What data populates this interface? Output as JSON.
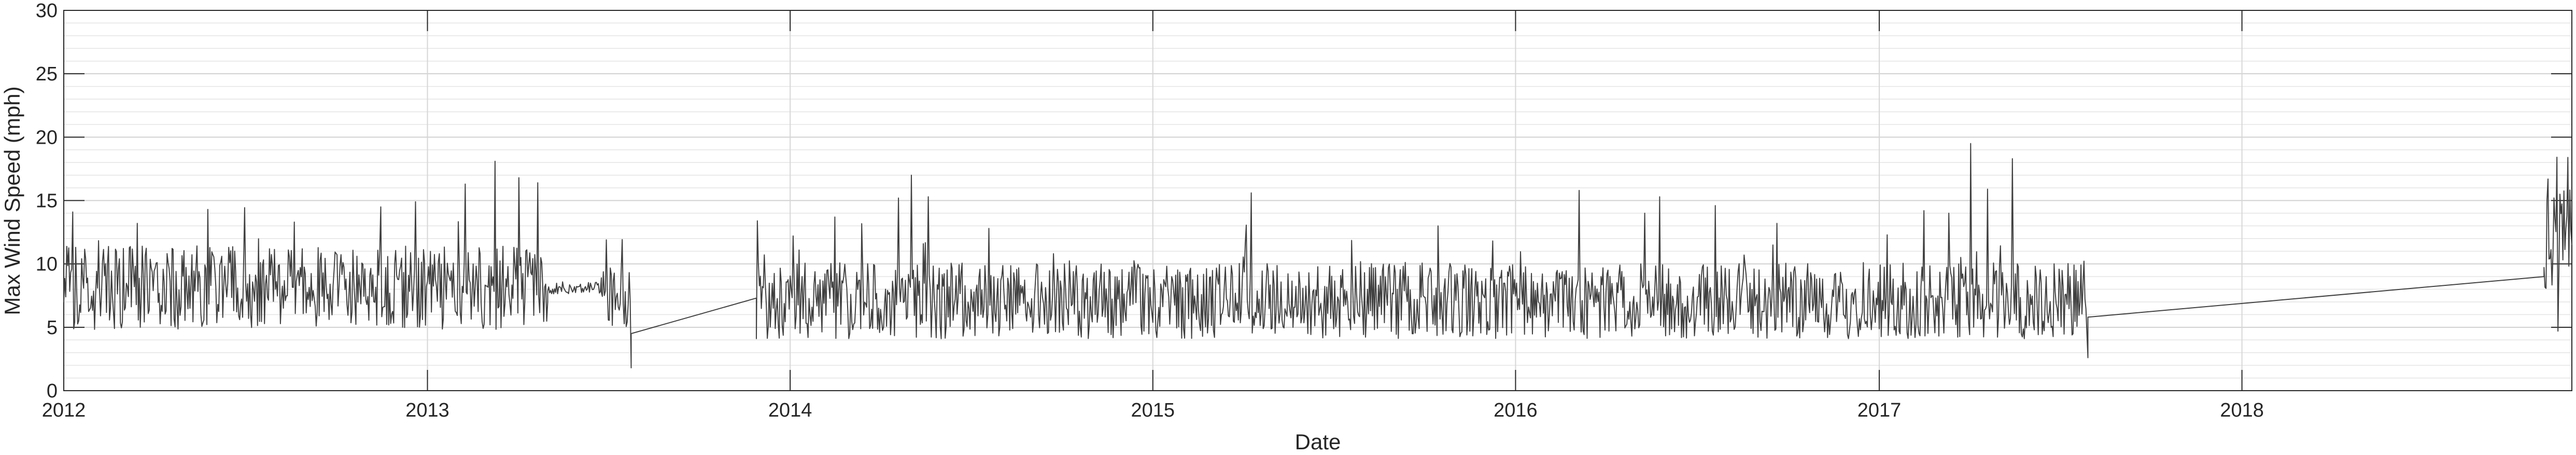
{
  "chart_data": {
    "type": "line",
    "title": "",
    "xlabel": "Date",
    "ylabel": "Max Wind Speed (mph)",
    "ylim": [
      0,
      30
    ],
    "xlim": [
      "2012-01-01",
      "2018-11-29"
    ],
    "grid": "major and minor",
    "line_color": "#404040",
    "x_ticks": [
      "2012",
      "2013",
      "2014",
      "2015",
      "2016",
      "2017",
      "2018"
    ],
    "y_ticks": [
      "0",
      "5",
      "10",
      "15",
      "20",
      "25",
      "30"
    ],
    "series": [
      {
        "segments": [
          {
            "start": "2012-01-01",
            "end": "2013-05-02",
            "mean": 7.8,
            "amp": 3.3,
            "peaks": [
              [
                "2012-01-10",
                14.1
              ],
              [
                "2012-03-15",
                13.2
              ],
              [
                "2012-05-25",
                14.3
              ],
              [
                "2012-08-20",
                13.3
              ],
              [
                "2012-11-15",
                14.5
              ],
              [
                "2012-12-20",
                14.9
              ],
              [
                "2013-02-08",
                16.3
              ],
              [
                "2013-03-10",
                18.1
              ],
              [
                "2013-04-03",
                16.8
              ],
              [
                "2013-04-22",
                16.4
              ],
              [
                "2013-05-02",
                7.0
              ]
            ]
          },
          {
            "start": "2013-05-02",
            "end": "2013-06-25",
            "mean": 8.0,
            "amp": 0.5,
            "peaks": [
              [
                "2013-06-25",
                8.9
              ]
            ]
          },
          {
            "start": "2013-06-25",
            "end": "2013-07-25",
            "mean": 7.2,
            "amp": 2.4,
            "peaks": [
              [
                "2013-06-30",
                11.9
              ],
              [
                "2013-07-25",
                1.8
              ]
            ]
          },
          {
            "start": "2013-07-25",
            "end": "2013-11-28",
            "mean": 4.5,
            "amp": 0.0,
            "peaks": [
              [
                "2013-11-28",
                7.3
              ]
            ]
          },
          {
            "start": "2013-11-28",
            "end": "2017-07-30",
            "mean": 6.8,
            "amp": 3.0,
            "peaks": [
              [
                "2013-11-29",
                13.4
              ],
              [
                "2014-02-15",
                13.7
              ],
              [
                "2014-04-20",
                15.2
              ],
              [
                "2014-05-03",
                17.0
              ],
              [
                "2014-05-20",
                15.3
              ],
              [
                "2014-07-20",
                12.8
              ],
              [
                "2015-04-10",
                15.6
              ],
              [
                "2015-10-15",
                13.0
              ],
              [
                "2016-03-05",
                15.8
              ],
              [
                "2016-05-10",
                14.0
              ],
              [
                "2016-05-25",
                15.3
              ],
              [
                "2016-07-20",
                14.6
              ],
              [
                "2016-09-20",
                13.2
              ],
              [
                "2017-02-15",
                14.2
              ],
              [
                "2017-03-12",
                14.0
              ],
              [
                "2017-04-03",
                19.5
              ],
              [
                "2017-04-20",
                15.9
              ],
              [
                "2017-05-15",
                18.3
              ],
              [
                "2017-07-30",
                2.6
              ]
            ]
          },
          {
            "start": "2017-07-30",
            "end": "2018-11-01",
            "mean": 5.8,
            "amp": 0.0,
            "peaks": [
              [
                "2018-11-01",
                9.0
              ]
            ]
          },
          {
            "start": "2018-11-01",
            "end": "2018-11-29",
            "mean": 11.5,
            "amp": 4.0,
            "peaks": [
              [
                "2018-11-05",
                16.7
              ],
              [
                "2018-11-15",
                4.7
              ],
              [
                "2018-11-25",
                18.4
              ]
            ]
          }
        ]
      }
    ]
  }
}
